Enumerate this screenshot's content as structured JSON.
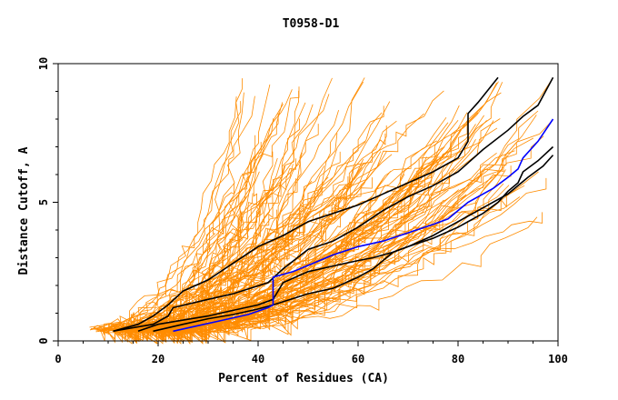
{
  "chart_data": {
    "type": "line",
    "title": "T0958-D1",
    "xlabel": "Percent of Residues (CA)",
    "ylabel": "Distance Cutoff, A",
    "xlim": [
      0,
      100
    ],
    "ylim": [
      0,
      10
    ],
    "x_ticks": [
      0,
      20,
      40,
      60,
      80,
      100
    ],
    "y_ticks": [
      0,
      5,
      10
    ],
    "grid": false,
    "legend": "none",
    "colors": {
      "background_curves": "#ff8c00",
      "highlight": "#000000",
      "target": "#0000ff"
    },
    "background_curves": {
      "count": 140,
      "start_percent_range": [
        6,
        25
      ],
      "end_percent_range": [
        35,
        100
      ],
      "max_distance": 9.5,
      "note_style": "many overlapping orange step curves"
    },
    "series": [
      {
        "color": "#000000",
        "x": [
          11,
          16,
          19,
          22,
          25,
          30,
          35,
          40,
          45,
          50,
          55,
          60,
          65,
          70,
          75,
          80,
          82,
          82,
          84,
          88
        ],
        "y": [
          0.35,
          0.6,
          0.9,
          1.3,
          1.8,
          2.2,
          2.8,
          3.4,
          3.8,
          4.3,
          4.6,
          4.9,
          5.3,
          5.7,
          6.1,
          6.6,
          7.2,
          8.2,
          8.6,
          9.5
        ]
      },
      {
        "color": "#000000",
        "x": [
          11,
          19,
          22,
          23,
          30,
          35,
          42,
          45,
          50,
          55,
          60,
          65,
          70,
          75,
          80,
          85,
          90,
          93,
          96,
          99
        ],
        "y": [
          0.35,
          0.6,
          0.9,
          1.2,
          1.5,
          1.7,
          2.1,
          2.6,
          3.3,
          3.6,
          4.1,
          4.7,
          5.2,
          5.6,
          6.1,
          6.9,
          7.6,
          8.1,
          8.5,
          9.5
        ]
      },
      {
        "color": "#000000",
        "x": [
          16,
          20,
          25,
          30,
          35,
          40,
          43,
          45,
          50,
          55,
          60,
          63,
          67,
          70,
          75,
          80,
          85,
          90,
          94,
          97,
          99
        ],
        "y": [
          0.35,
          0.6,
          0.75,
          0.9,
          1.1,
          1.3,
          1.5,
          2.1,
          2.5,
          2.7,
          2.9,
          3.0,
          3.2,
          3.4,
          3.8,
          4.3,
          4.8,
          5.3,
          5.9,
          6.3,
          6.7
        ]
      },
      {
        "color": "#000000",
        "x": [
          19,
          25,
          30,
          35,
          40,
          43,
          50,
          55,
          60,
          63,
          67,
          70,
          75,
          80,
          85,
          88,
          90,
          92,
          93,
          96,
          99
        ],
        "y": [
          0.35,
          0.6,
          0.8,
          0.95,
          1.15,
          1.3,
          1.7,
          1.9,
          2.3,
          2.6,
          3.2,
          3.4,
          3.7,
          4.1,
          4.6,
          5.0,
          5.4,
          5.7,
          6.1,
          6.5,
          7.0
        ]
      },
      {
        "color": "#0000ff",
        "x": [
          23,
          28,
          33,
          38,
          42,
          43,
          43,
          47,
          51,
          55,
          60,
          65,
          70,
          75,
          78,
          80,
          82,
          84,
          87,
          90,
          92,
          93,
          96,
          99
        ],
        "y": [
          0.35,
          0.55,
          0.75,
          0.95,
          1.2,
          1.3,
          2.3,
          2.5,
          2.8,
          3.1,
          3.4,
          3.6,
          3.9,
          4.2,
          4.4,
          4.7,
          5.0,
          5.2,
          5.5,
          5.9,
          6.2,
          6.6,
          7.2,
          8.0
        ]
      }
    ]
  }
}
